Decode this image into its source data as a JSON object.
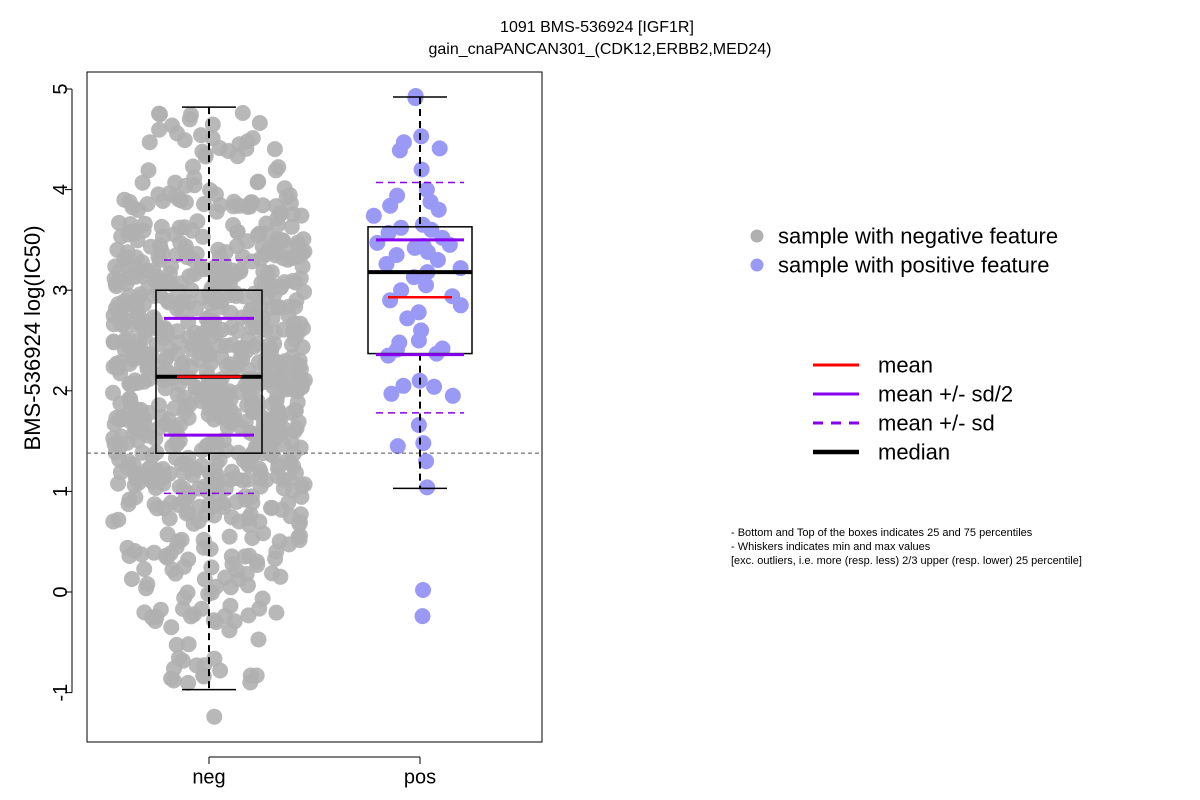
{
  "chart_data": {
    "type": "boxplot-beeswarm",
    "title": "1091 BMS-536924 [IGF1R]",
    "subtitle": "gain_cnaPANCAN301_(CDK12,ERBB2,MED24)",
    "ylabel": "BMS-536924 log(IC50)",
    "xlabel": "",
    "categories": [
      "neg",
      "pos"
    ],
    "ylim": [
      -1.5,
      5.15
    ],
    "yticks": [
      -1,
      0,
      1,
      2,
      3,
      4,
      5
    ],
    "reference_line_y": 1.38,
    "groups": [
      {
        "name": "neg",
        "color": "#b0b0b0",
        "n_points": 820,
        "whisker_min": -0.97,
        "q1": 1.38,
        "median": 2.14,
        "q3": 3.0,
        "whisker_max": 4.82,
        "mean": 2.14,
        "mean_minus_half_sd": 1.56,
        "mean_plus_half_sd": 2.72,
        "mean_minus_sd": 0.98,
        "mean_plus_sd": 3.3,
        "outliers": [
          -1.24
        ]
      },
      {
        "name": "pos",
        "color": "#9a9af6",
        "whisker_min": 1.03,
        "q1": 2.37,
        "median": 3.18,
        "q3": 3.63,
        "whisker_max": 4.92,
        "mean": 2.93,
        "mean_minus_half_sd": 2.36,
        "mean_plus_half_sd": 3.5,
        "mean_minus_sd": 1.78,
        "mean_plus_sd": 4.07,
        "outliers": [
          0.02,
          -0.24
        ],
        "points": [
          4.93,
          4.91,
          4.53,
          4.47,
          4.41,
          4.39,
          4.2,
          4.0,
          3.94,
          3.88,
          3.84,
          3.8,
          3.74,
          3.65,
          3.62,
          3.6,
          3.57,
          3.52,
          3.47,
          3.45,
          3.44,
          3.42,
          3.38,
          3.35,
          3.3,
          3.26,
          3.22,
          3.18,
          3.13,
          3.05,
          3.0,
          2.94,
          2.9,
          2.85,
          2.78,
          2.72,
          2.6,
          2.5,
          2.48,
          2.42,
          2.41,
          2.37,
          2.35,
          2.1,
          2.05,
          2.04,
          1.97,
          1.95,
          1.66,
          1.48,
          1.45,
          1.3,
          1.04,
          0.02,
          -0.24
        ]
      }
    ],
    "legend_points": [
      {
        "label": "sample with negative feature",
        "color": "#b0b0b0"
      },
      {
        "label": "sample with positive feature",
        "color": "#9a9af6"
      }
    ],
    "legend_lines": [
      {
        "label": "mean",
        "color": "#ff0000",
        "style": "solid"
      },
      {
        "label": "mean +/- sd/2",
        "color": "#8800ee",
        "style": "solid"
      },
      {
        "label": "mean +/- sd",
        "color": "#8800ee",
        "style": "dashed"
      },
      {
        "label": "median",
        "color": "#000000",
        "style": "solid-thick"
      }
    ],
    "notes": [
      "- Bottom and Top of the boxes indicates 25 and 75 percentiles",
      "- Whiskers indicates min and max values",
      "[exc. outliers, i.e. more (resp. less) 2/3 upper (resp. lower) 25 percentile]"
    ]
  }
}
